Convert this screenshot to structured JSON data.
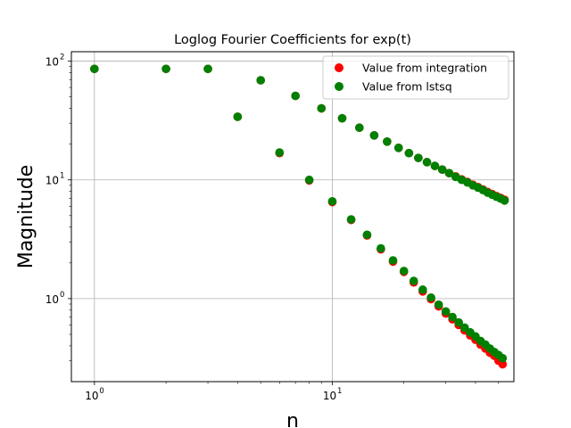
{
  "chart_data": {
    "type": "scatter",
    "title": "Loglog Fourier Coefficients for exp(t)",
    "xlabel": "n",
    "ylabel": "Magnitude",
    "xscale": "log",
    "yscale": "log",
    "xlim": [
      0.8,
      58
    ],
    "ylim": [
      0.2,
      120
    ],
    "x_ticks": [
      {
        "value": 1,
        "base": "10",
        "exp": "0"
      },
      {
        "value": 10,
        "base": "10",
        "exp": "1"
      }
    ],
    "y_ticks": [
      {
        "value": 1,
        "base": "10",
        "exp": "0"
      },
      {
        "value": 10,
        "base": "10",
        "exp": "1"
      },
      {
        "value": 100,
        "base": "10",
        "exp": "2"
      }
    ],
    "grid": true,
    "legend_position": "top-right",
    "series": [
      {
        "name": "Value from integration",
        "color": "#ff0000",
        "points": [
          [
            1,
            86
          ],
          [
            2,
            86
          ],
          [
            3,
            86
          ],
          [
            4,
            34
          ],
          [
            5,
            69
          ],
          [
            6,
            16.8
          ],
          [
            7,
            51
          ],
          [
            8,
            9.9
          ],
          [
            9,
            40
          ],
          [
            10,
            6.5
          ],
          [
            11,
            33
          ],
          [
            12,
            4.6
          ],
          [
            13,
            27.5
          ],
          [
            14,
            3.4
          ],
          [
            15,
            23.7
          ],
          [
            16,
            2.6
          ],
          [
            17,
            21
          ],
          [
            18,
            2.05
          ],
          [
            19,
            18.6
          ],
          [
            20,
            1.68
          ],
          [
            21,
            16.8
          ],
          [
            22,
            1.37
          ],
          [
            23,
            15.3
          ],
          [
            24,
            1.15
          ],
          [
            25,
            14.1
          ],
          [
            26,
            0.99
          ],
          [
            27,
            13.1
          ],
          [
            28,
            0.86
          ],
          [
            29,
            12.2
          ],
          [
            30,
            0.75
          ],
          [
            31,
            11.4
          ],
          [
            32,
            0.67
          ],
          [
            33,
            10.7
          ],
          [
            34,
            0.6
          ],
          [
            35,
            10.1
          ],
          [
            36,
            0.54
          ],
          [
            37,
            9.6
          ],
          [
            38,
            0.49
          ],
          [
            39,
            9.1
          ],
          [
            40,
            0.45
          ],
          [
            41,
            8.7
          ],
          [
            42,
            0.41
          ],
          [
            43,
            8.3
          ],
          [
            44,
            0.38
          ],
          [
            45,
            7.9
          ],
          [
            46,
            0.35
          ],
          [
            47,
            7.6
          ],
          [
            48,
            0.33
          ],
          [
            49,
            7.3
          ],
          [
            50,
            0.3
          ],
          [
            51,
            7.05
          ],
          [
            52,
            0.28
          ],
          [
            53,
            6.8
          ]
        ]
      },
      {
        "name": "Value from lstsq",
        "color": "#008000",
        "points": [
          [
            1,
            86
          ],
          [
            2,
            86
          ],
          [
            3,
            86
          ],
          [
            4,
            34
          ],
          [
            5,
            69
          ],
          [
            6,
            17
          ],
          [
            7,
            51
          ],
          [
            8,
            10
          ],
          [
            9,
            40
          ],
          [
            10,
            6.6
          ],
          [
            11,
            33
          ],
          [
            12,
            4.65
          ],
          [
            13,
            27.5
          ],
          [
            14,
            3.45
          ],
          [
            15,
            23.7
          ],
          [
            16,
            2.65
          ],
          [
            17,
            21
          ],
          [
            18,
            2.1
          ],
          [
            19,
            18.6
          ],
          [
            20,
            1.71
          ],
          [
            21,
            16.8
          ],
          [
            22,
            1.41
          ],
          [
            23,
            15.3
          ],
          [
            24,
            1.19
          ],
          [
            25,
            14.1
          ],
          [
            26,
            1.02
          ],
          [
            27,
            13.1
          ],
          [
            28,
            0.89
          ],
          [
            29,
            12.2
          ],
          [
            30,
            0.78
          ],
          [
            31,
            11.4
          ],
          [
            32,
            0.7
          ],
          [
            33,
            10.6
          ],
          [
            34,
            0.63
          ],
          [
            35,
            10.0
          ],
          [
            36,
            0.57
          ],
          [
            37,
            9.5
          ],
          [
            38,
            0.52
          ],
          [
            39,
            9.0
          ],
          [
            40,
            0.48
          ],
          [
            41,
            8.6
          ],
          [
            42,
            0.44
          ],
          [
            43,
            8.2
          ],
          [
            44,
            0.41
          ],
          [
            45,
            7.8
          ],
          [
            46,
            0.38
          ],
          [
            47,
            7.5
          ],
          [
            48,
            0.355
          ],
          [
            49,
            7.2
          ],
          [
            50,
            0.335
          ],
          [
            51,
            6.95
          ],
          [
            52,
            0.315
          ],
          [
            53,
            6.7
          ]
        ]
      }
    ]
  }
}
